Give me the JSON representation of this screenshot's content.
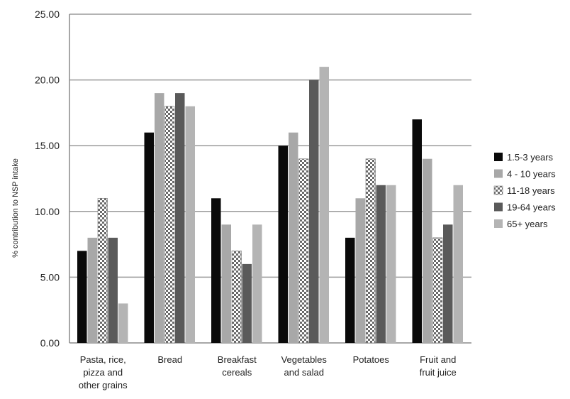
{
  "chart_data": {
    "type": "bar",
    "title": "",
    "xlabel": "",
    "ylabel": "% contribution to NSP intake",
    "ylim": [
      0,
      25
    ],
    "y_ticks": [
      "0.00",
      "5.00",
      "10.00",
      "15.00",
      "20.00",
      "25.00"
    ],
    "grid": true,
    "legend_position": "right",
    "categories": [
      [
        "Pasta, rice,",
        "pizza and",
        "other grains"
      ],
      [
        "Bread"
      ],
      [
        "Breakfast",
        "cereals"
      ],
      [
        "Vegetables",
        "and salad"
      ],
      [
        "Potatoes"
      ],
      [
        "Fruit and",
        "fruit juice"
      ]
    ],
    "series": [
      {
        "name": "1.5-3 years",
        "fill": "#0a0a0a",
        "pattern": "solid",
        "values": [
          7,
          16,
          11,
          15,
          8,
          17
        ]
      },
      {
        "name": "4 - 10 years",
        "fill": "#a8a8a8",
        "pattern": "solid",
        "values": [
          8,
          19,
          9,
          16,
          11,
          14
        ]
      },
      {
        "name": "11-18 years",
        "fill": "#ffffff",
        "pattern": "checker",
        "values": [
          11,
          18,
          7,
          14,
          14,
          8
        ]
      },
      {
        "name": "19-64 years",
        "fill": "#5a5a5a",
        "pattern": "solid",
        "values": [
          8,
          19,
          6,
          20,
          12,
          9
        ]
      },
      {
        "name": "65+ years",
        "fill": "#b4b4b4",
        "pattern": "solid",
        "values": [
          3,
          18,
          9,
          21,
          12,
          12
        ]
      }
    ]
  }
}
